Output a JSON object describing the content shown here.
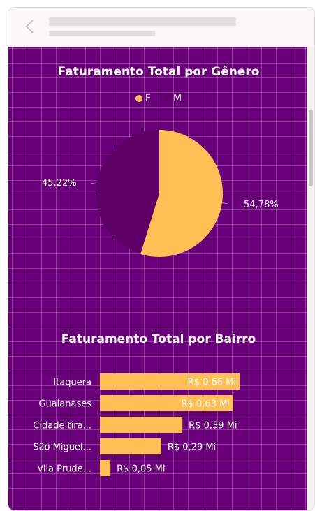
{
  "colors": {
    "background": "#6a0079",
    "female": "#ffbf55",
    "male": "#5e0068",
    "text": "#ffffff"
  },
  "header": {
    "back_icon": "chevron-left-icon"
  },
  "pie": {
    "title": "Faturamento Total por Gênero",
    "legend": [
      {
        "label": "F",
        "color": "#ffbf55"
      },
      {
        "label": "M",
        "color": "#5e0068"
      }
    ],
    "labels": {
      "female": "54,78%",
      "male": "45,22%"
    }
  },
  "bar": {
    "title": "Faturamento Total por Bairro"
  },
  "chart_data": [
    {
      "type": "pie",
      "title": "Faturamento Total por Gênero",
      "slices": [
        {
          "label": "F",
          "value": 54.78,
          "display": "54,78%",
          "color": "#ffbf55"
        },
        {
          "label": "M",
          "value": 45.22,
          "display": "45,22%",
          "color": "#5e0068"
        }
      ],
      "legend": "top"
    },
    {
      "type": "bar",
      "orientation": "horizontal",
      "title": "Faturamento Total por Bairro",
      "categories": [
        "Itaquera",
        "Guaianases",
        "Cidade tira...",
        "São Miguel...",
        "Vila Prude..."
      ],
      "values": [
        0.66,
        0.63,
        0.39,
        0.29,
        0.05
      ],
      "value_labels": [
        "R$ 0,66 Mi",
        "R$ 0,63 Mi",
        "R$ 0,39 Mi",
        "R$ 0,29 Mi",
        "R$ 0,05 Mi"
      ],
      "color": "#ffbf55",
      "xlim": [
        0,
        0.66
      ]
    }
  ]
}
